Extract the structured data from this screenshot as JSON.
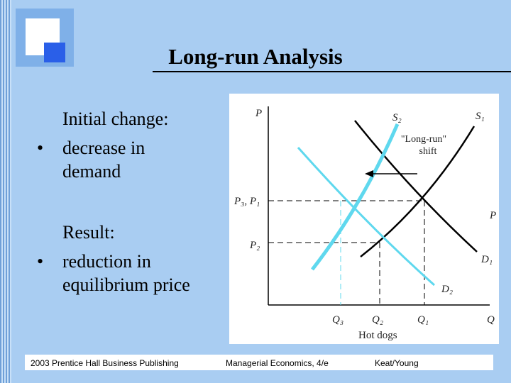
{
  "title": "Long-run Analysis",
  "bullets": [
    {
      "heading": "Initial change:",
      "lines": [
        "decrease in",
        "demand"
      ]
    },
    {
      "heading": "Result:",
      "lines": [
        "reduction in",
        "equilibrium price"
      ]
    }
  ],
  "diagram": {
    "y_axis": "P",
    "x_axis": "Q",
    "x_axis_title": "Hot dogs",
    "supply_new": "S₂",
    "supply_old": "S₁",
    "shift_label": [
      "\"Long-run\"",
      "shift"
    ],
    "price_high": "P₃, P₁",
    "price_low": "P₂",
    "price_cut": "P",
    "demand_old": "D₁",
    "demand_new": "D₂",
    "q3": "Q₃",
    "q2": "Q₂",
    "q1": "Q₁"
  },
  "footer": [
    "2003 Prentice Hall Business Publishing",
    "Managerial Economics, 4/e",
    "Keat/Young"
  ]
}
